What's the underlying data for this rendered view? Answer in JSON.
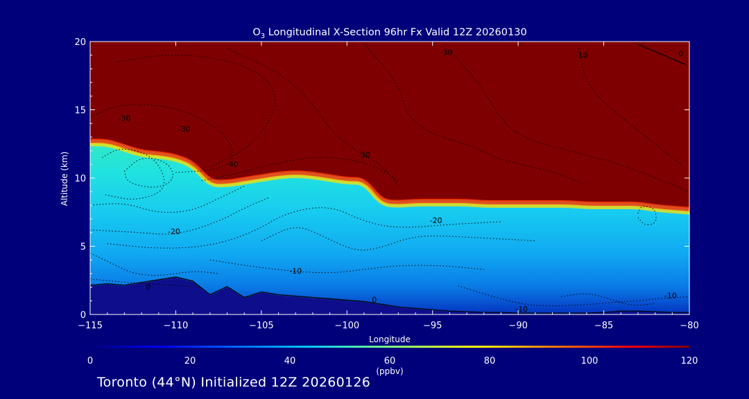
{
  "chart_data": {
    "type": "contour",
    "title_species": "O",
    "title_subscript": "3",
    "title_rest": " Longitudinal X-Section 96hr  Fx Valid 12Z 20260130",
    "xlabel": "Longitude",
    "ylabel": "Altitude (km)",
    "xlim": [
      -115,
      -80
    ],
    "ylim": [
      0,
      20
    ],
    "x_ticks": [
      -115,
      -110,
      -105,
      -100,
      -95,
      -90,
      -85,
      -80
    ],
    "x_tick_labels": [
      "−115",
      "−110",
      "−105",
      "−100",
      "−95",
      "−90",
      "−85",
      "−80"
    ],
    "y_ticks": [
      0,
      5,
      10,
      15,
      20
    ],
    "y_tick_labels": [
      "0",
      "5",
      "10",
      "15",
      "20"
    ],
    "colorbar": {
      "label": "(ppbv)",
      "min": 0,
      "max": 120,
      "ticks": [
        0,
        20,
        40,
        60,
        80,
        100,
        120
      ],
      "tick_labels": [
        "0",
        "20",
        "40",
        "60",
        "80",
        "100",
        "120"
      ]
    },
    "fields": {
      "tropopause_altitude_km": {
        "lon": [
          -115,
          -114,
          -113,
          -112,
          -111,
          -110,
          -109,
          -108,
          -107,
          -106,
          -105,
          -104,
          -103,
          -102,
          -101,
          -100,
          -99,
          -98,
          -97,
          -96,
          -95,
          -94,
          -93,
          -92,
          -91,
          -90,
          -89,
          -88,
          -87,
          -86,
          -85,
          -84,
          -83,
          -82,
          -81,
          -80
        ],
        "alt": [
          12.8,
          12.8,
          12.4,
          12.0,
          11.9,
          11.7,
          11.2,
          9.8,
          9.8,
          10.0,
          10.2,
          10.4,
          10.5,
          10.4,
          10.2,
          10.0,
          10.0,
          8.4,
          8.3,
          8.4,
          8.4,
          8.4,
          8.4,
          8.3,
          8.3,
          8.3,
          8.3,
          8.3,
          8.3,
          8.2,
          8.2,
          8.2,
          8.2,
          8.0,
          7.9,
          7.8
        ]
      },
      "terrain_altitude_km": {
        "lon": [
          -115,
          -114,
          -113,
          -112,
          -111,
          -110,
          -109,
          -108,
          -107,
          -106,
          -105,
          -104,
          -103,
          -102,
          -101,
          -100,
          -99,
          -98,
          -97,
          -96,
          -95,
          -94,
          -93,
          -92,
          -91,
          -90,
          -89,
          -88,
          -87,
          -86,
          -85,
          -84,
          -83,
          -82,
          -81,
          -80
        ],
        "alt": [
          2.1,
          2.2,
          2.1,
          2.3,
          2.5,
          2.7,
          2.4,
          1.4,
          2.0,
          1.2,
          1.6,
          1.4,
          1.3,
          1.2,
          1.1,
          1.0,
          0.9,
          0.7,
          0.5,
          0.4,
          0.3,
          0.2,
          0.15,
          0.1,
          0.1,
          0.05,
          0.05,
          0.05,
          0.05,
          0.05,
          0.1,
          0.2,
          0.2,
          0.15,
          0.1,
          0.1
        ]
      }
    },
    "contour_levels_ppbv": [
      -40,
      -30,
      -20,
      -10,
      0
    ],
    "contour_labels": [
      {
        "text": "-30",
        "lon": -113.0,
        "alt": 14.2
      },
      {
        "text": "-30",
        "lon": -109.5,
        "alt": 13.4
      },
      {
        "text": "-30",
        "lon": -94.2,
        "alt": 19.0
      },
      {
        "text": "-10",
        "lon": -86.3,
        "alt": 18.8
      },
      {
        "text": "-40",
        "lon": -106.7,
        "alt": 10.8
      },
      {
        "text": "-30",
        "lon": -99.0,
        "alt": 11.5
      },
      {
        "text": "-20",
        "lon": -110.1,
        "alt": 5.9
      },
      {
        "text": "-20",
        "lon": -94.8,
        "alt": 6.7
      },
      {
        "text": "-10",
        "lon": -103.0,
        "alt": 3.0
      },
      {
        "text": "-10",
        "lon": -89.8,
        "alt": 0.2
      },
      {
        "text": "-10",
        "lon": -81.1,
        "alt": 1.2
      },
      {
        "text": "0",
        "lon": -111.6,
        "alt": 1.8
      },
      {
        "text": "0",
        "lon": -98.4,
        "alt": 0.9
      },
      {
        "text": "0",
        "lon": -80.5,
        "alt": 18.9
      }
    ]
  },
  "footer": {
    "station_text": "Toronto (44°N) Initialized 12Z 20260126"
  },
  "colors": {
    "background": "#00007a",
    "stratosphere": "#7f0000",
    "terrain": "#0e0e8c",
    "text": "#ffffff"
  }
}
